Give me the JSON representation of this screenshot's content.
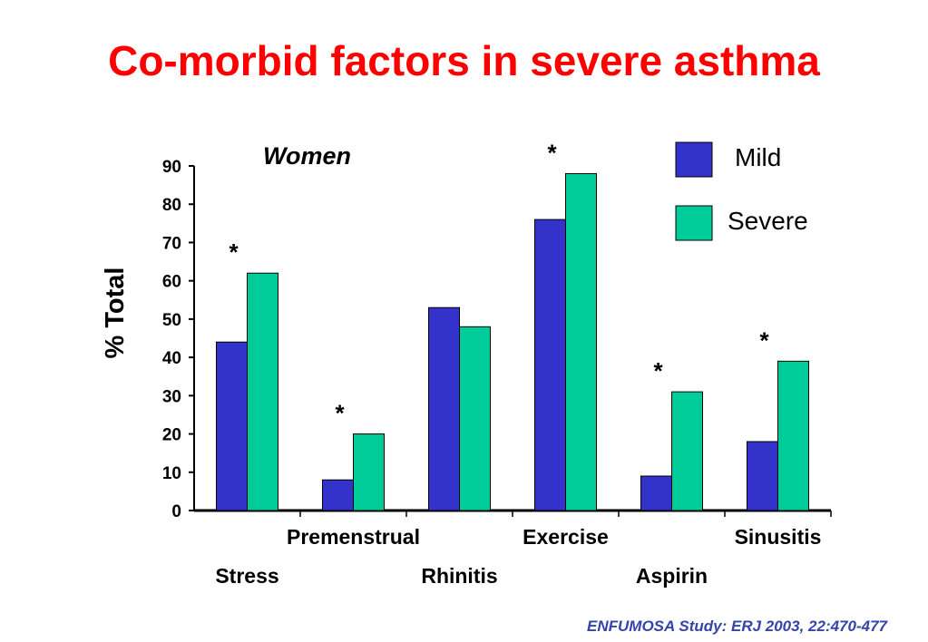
{
  "title": "Co-morbid factors in severe asthma",
  "source": "ENFUMOSA Study: ERJ 2003,  22:470-477",
  "chart_data": {
    "type": "bar",
    "subtitle": "Women",
    "ylabel": "% Total",
    "xlabel": "",
    "ylim": [
      0,
      90
    ],
    "yticks": [
      0,
      10,
      20,
      30,
      40,
      50,
      60,
      70,
      80,
      90
    ],
    "categories": [
      "Stress",
      "Premenstrual",
      "Rhinitis",
      "Exercise",
      "Aspirin",
      "Sinusitis"
    ],
    "series": [
      {
        "name": "Mild",
        "color": "#3333cc",
        "values": [
          44,
          8,
          53,
          76,
          9,
          18
        ]
      },
      {
        "name": "Severe",
        "color": "#00cc99",
        "values": [
          62,
          20,
          48,
          88,
          31,
          39
        ]
      }
    ],
    "significance_marker": "*",
    "significant": [
      true,
      true,
      false,
      true,
      true,
      true
    ],
    "legend_position": "top-right",
    "grid": false
  }
}
